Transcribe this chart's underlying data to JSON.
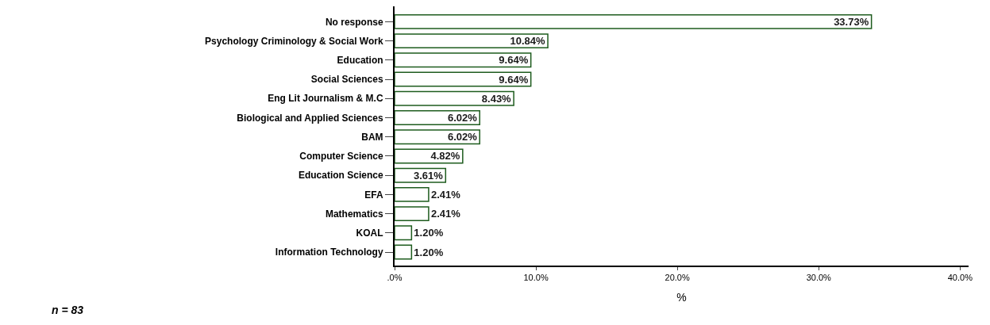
{
  "chart_data": {
    "type": "bar",
    "orientation": "horizontal",
    "categories": [
      "No response",
      "Psychology Criminology & Social Work",
      "Education",
      "Social Sciences",
      "Eng Lit Journalism & M.C",
      "Biological and Applied Sciences",
      "BAM",
      "Computer Science",
      "Education Science",
      "EFA",
      "Mathematics",
      "KOAL",
      "Information Technology"
    ],
    "values": [
      33.73,
      10.84,
      9.64,
      9.64,
      8.43,
      6.02,
      6.02,
      4.82,
      3.61,
      2.41,
      2.41,
      1.2,
      1.2
    ],
    "value_labels": [
      "33.73%",
      "10.84%",
      "9.64%",
      "9.64%",
      "8.43%",
      "6.02%",
      "6.02%",
      "4.82%",
      "3.61%",
      "2.41%",
      "2.41%",
      "1.20%",
      "1.20%"
    ],
    "color": "#ffffff",
    "xlabel": "%",
    "xlim": [
      0,
      40.6
    ],
    "xticks": [
      {
        "value": 0,
        "label": ".0%"
      },
      {
        "value": 10,
        "label": "10.0%"
      },
      {
        "value": 20,
        "label": "20.0%"
      },
      {
        "value": 30,
        "label": "30.0%"
      },
      {
        "value": 40,
        "label": "40.0%"
      }
    ],
    "legend": false,
    "annotations": [
      "n = 83"
    ]
  }
}
